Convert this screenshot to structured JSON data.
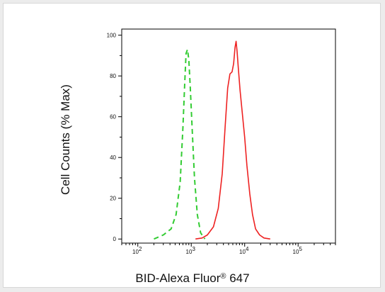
{
  "chart_data": {
    "type": "line",
    "xlabel": "BID-Alexa Fluor",
    "xlabel_mark": "®",
    "xlabel_suffix": " 647",
    "ylabel": "Cell Counts (% Max)",
    "xscale": "log",
    "xlim": [
      50,
      500000
    ],
    "ylim": [
      -2,
      103
    ],
    "y_ticks": [
      0,
      20,
      40,
      60,
      80,
      100
    ],
    "y_tick_labels": [
      "0",
      "20",
      "40",
      "60",
      "80",
      "100"
    ],
    "x_decades": [
      {
        "value": 100,
        "base": "10",
        "exp": "2"
      },
      {
        "value": 1000,
        "base": "10",
        "exp": "3"
      },
      {
        "value": 10000,
        "base": "10",
        "exp": "4"
      },
      {
        "value": 100000,
        "base": "10",
        "exp": "5"
      }
    ],
    "grid": false,
    "legend": "none",
    "series": [
      {
        "color": "#33cc33",
        "dash": "dashed",
        "x": [
          200,
          300,
          420,
          520,
          620,
          700,
          760,
          800,
          850,
          900,
          960,
          1050,
          1150,
          1300,
          1500,
          1800
        ],
        "y": [
          0,
          2,
          5,
          12,
          28,
          55,
          78,
          91,
          93,
          88,
          74,
          52,
          30,
          12,
          3,
          0
        ]
      },
      {
        "color": "#ee2222",
        "dash": "solid",
        "x": [
          1200,
          1600,
          2000,
          2600,
          3200,
          3800,
          4300,
          4800,
          5300,
          5800,
          6200,
          6600,
          6900,
          7200,
          7600,
          8200,
          9000,
          10000,
          11000,
          12500,
          14000,
          16000,
          19000,
          23000,
          30000
        ],
        "y": [
          0,
          0.5,
          2,
          6,
          15,
          32,
          55,
          74,
          81,
          82,
          86,
          94,
          97,
          92,
          84,
          73,
          62,
          50,
          36,
          22,
          12,
          5,
          2,
          0.5,
          0
        ]
      }
    ]
  }
}
